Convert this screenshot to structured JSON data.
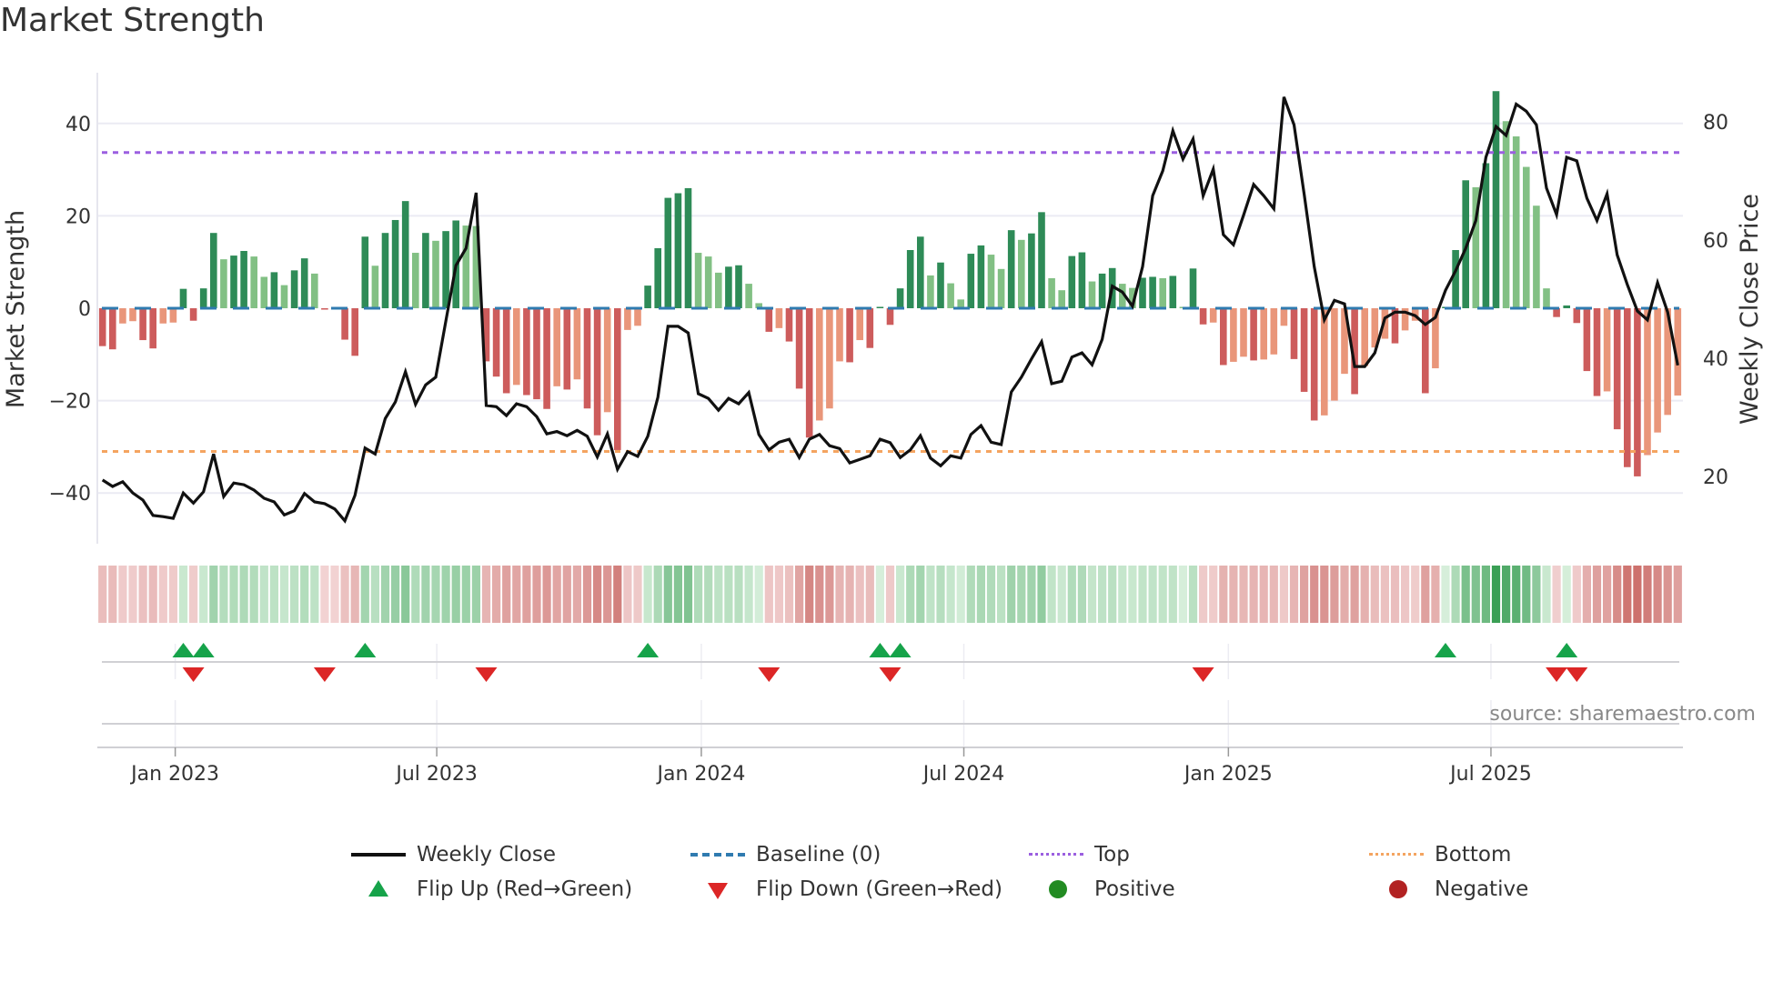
{
  "title": "Market Strength",
  "source": "source: sharemaestro.com",
  "colors": {
    "pos_dark": "#2e8b57",
    "pos_light": "#82c084",
    "neg_dark": "#cd5c5c",
    "neg_light": "#e9967a",
    "price": "#111111",
    "baseline": "#2f7bb0",
    "top": "#9b5fe0",
    "bottom": "#f4a460",
    "flip_up": "#16a34a",
    "flip_down": "#dc2626",
    "positive": "#228b22",
    "negative": "#b22222"
  },
  "chart_data": {
    "type": "bar+line",
    "title": "Market Strength",
    "ylabel": "Market Strength",
    "y2label": "Weekly Close Price",
    "ylim": [
      -51,
      51
    ],
    "y2lim": [
      8.6,
      88.3
    ],
    "yticks": [
      40,
      20,
      0,
      -20,
      -40
    ],
    "ytick_labels": [
      "40",
      "20",
      "0",
      "−20",
      "−40"
    ],
    "y2ticks": [
      80,
      60,
      40,
      20
    ],
    "y2tick_labels": [
      "80",
      "60",
      "40",
      "20"
    ],
    "top_level": 33.7,
    "bottom_level": -31,
    "baseline": 0,
    "xticks": [
      {
        "week": 7.2,
        "label": "Jan 2023"
      },
      {
        "week": 33.1,
        "label": "Jul 2023"
      },
      {
        "week": 59.3,
        "label": "Jan 2024"
      },
      {
        "week": 85.3,
        "label": "Jul 2024"
      },
      {
        "week": 111.5,
        "label": "Jan 2025"
      },
      {
        "week": 137.5,
        "label": "Jul 2025"
      }
    ],
    "strength": [
      -8.2,
      -8.9,
      -3.3,
      -2.8,
      -6.9,
      -8.7,
      -3.3,
      -3.1,
      4.2,
      -2.7,
      4.3,
      16.3,
      10.6,
      11.4,
      12.4,
      11.2,
      6.8,
      7.8,
      5.0,
      8.2,
      10.8,
      7.5,
      -0.3,
      -0.2,
      -6.8,
      -10.3,
      15.5,
      9.2,
      16.3,
      19.1,
      23.2,
      12.0,
      16.3,
      14.6,
      16.7,
      19.0,
      17.9,
      17.8,
      -11.5,
      -14.8,
      -18.4,
      -16.6,
      -18.8,
      -19.7,
      -21.8,
      -16.9,
      -17.6,
      -15.4,
      -21.7,
      -27.5,
      -22.5,
      -30.7,
      -4.7,
      -3.8,
      4.9,
      13.0,
      23.9,
      24.9,
      26.0,
      12.0,
      11.2,
      7.7,
      9.0,
      9.3,
      5.3,
      1.1,
      -5.1,
      -4.3,
      -7.2,
      -17.4,
      -28.0,
      -24.3,
      -21.7,
      -11.5,
      -11.7,
      -6.9,
      -8.6,
      0.3,
      -3.6,
      4.3,
      12.6,
      15.5,
      7.1,
      9.9,
      5.4,
      1.9,
      11.8,
      13.6,
      11.6,
      8.5,
      16.9,
      14.8,
      16.2,
      20.8,
      6.5,
      3.9,
      11.3,
      12.1,
      5.8,
      7.5,
      8.7,
      5.3,
      4.4,
      6.6,
      6.8,
      6.5,
      7.0,
      0.3,
      8.6,
      -3.5,
      -3.1,
      -12.3,
      -11.6,
      -10.5,
      -11.3,
      -11.1,
      -10.0,
      -3.8,
      -11.0,
      -18.1,
      -24.3,
      -23.2,
      -20.0,
      -14.2,
      -18.6,
      -12.5,
      -8.5,
      -6.6,
      -7.6,
      -4.8,
      -2.7,
      -18.4,
      -13.0,
      0.3,
      12.6,
      27.7,
      26.2,
      31.4,
      47.0,
      40.5,
      37.2,
      30.6,
      22.2,
      4.3,
      -1.9,
      0.6,
      -3.2,
      -13.6,
      -19.0,
      -18.0,
      -26.2,
      -34.4,
      -36.4,
      -31.8,
      -26.9,
      -23.1,
      -18.9
    ],
    "weekly_close": [
      19.4,
      18.3,
      19.1,
      17.2,
      16.0,
      13.4,
      13.2,
      12.9,
      17.2,
      15.5,
      17.4,
      23.8,
      16.6,
      18.9,
      18.6,
      17.7,
      16.3,
      15.7,
      13.5,
      14.2,
      17.1,
      15.7,
      15.4,
      14.5,
      12.5,
      16.8,
      24.8,
      23.8,
      29.8,
      32.6,
      37.7,
      32.2,
      35.5,
      36.8,
      46.3,
      55.7,
      58.6,
      68.0,
      32.0,
      31.8,
      30.3,
      32.3,
      31.8,
      30.1,
      27.2,
      27.6,
      26.9,
      27.8,
      26.8,
      23.3,
      27.2,
      21.2,
      24.2,
      23.4,
      26.8,
      33.4,
      45.4,
      45.4,
      44.3,
      34.0,
      33.2,
      31.2,
      33.2,
      32.3,
      34.2,
      27.1,
      24.5,
      25.8,
      26.3,
      23.2,
      26.3,
      27.1,
      25.2,
      24.7,
      22.3,
      22.9,
      23.5,
      26.3,
      25.7,
      23.2,
      24.5,
      26.9,
      23.1,
      21.8,
      23.5,
      23.1,
      27.1,
      28.6,
      25.8,
      25.4,
      34.3,
      36.8,
      39.9,
      42.8,
      35.7,
      36.1,
      40.2,
      40.9,
      38.9,
      43.2,
      52.2,
      51.2,
      48.8,
      55.5,
      67.5,
      71.7,
      78.5,
      73.7,
      77.1,
      67.5,
      72.0,
      60.9,
      59.2,
      64.2,
      69.4,
      67.5,
      65.3,
      84.2,
      79.5,
      67.8,
      55.5,
      46.5,
      49.8,
      49.2,
      38.6,
      38.6,
      40.9,
      46.8,
      47.8,
      47.8,
      47.2,
      45.7,
      46.9,
      51.5,
      54.8,
      58.6,
      63.3,
      74.0,
      79.2,
      77.7,
      83.0,
      81.8,
      79.5,
      68.8,
      64.3,
      74.0,
      73.4,
      67.1,
      63.3,
      67.8,
      57.5,
      52.5,
      48.0,
      46.5,
      52.8,
      47.8,
      38.8
    ]
  },
  "legend": [
    {
      "key": "weekly_close",
      "label": "Weekly Close"
    },
    {
      "key": "baseline",
      "label": "Baseline (0)"
    },
    {
      "key": "top",
      "label": "Top"
    },
    {
      "key": "bottom",
      "label": "Bottom"
    },
    {
      "key": "flip_up",
      "label": "Flip Up (Red→Green)"
    },
    {
      "key": "flip_down",
      "label": "Flip Down (Green→Red)"
    },
    {
      "key": "positive",
      "label": "Positive"
    },
    {
      "key": "negative",
      "label": "Negative"
    }
  ]
}
